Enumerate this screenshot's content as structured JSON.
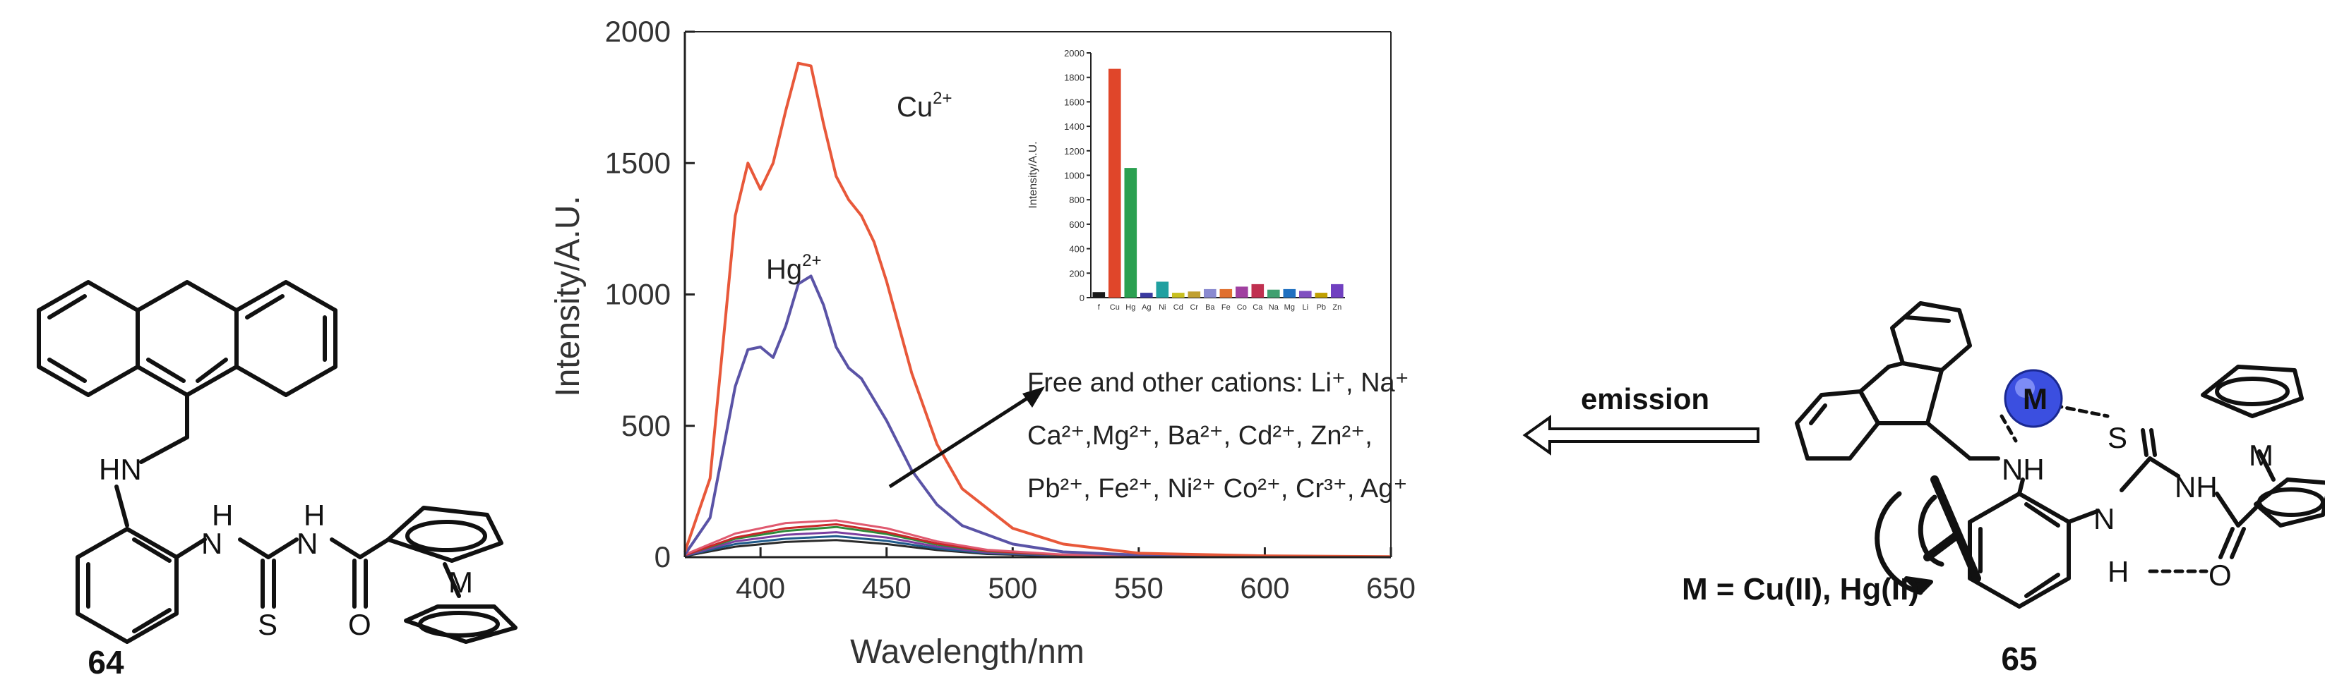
{
  "compounds": {
    "left_label": "64",
    "right_label": "65",
    "metal_condition": "M = Cu(II), Hg(II)",
    "arrow_label": "emission",
    "atoms": {
      "HN": "HN",
      "H": "H",
      "N": "N",
      "S": "S",
      "O": "O",
      "M": "M",
      "NH": "NH",
      "NH_amide": "NH",
      "H_hbond": "H"
    }
  },
  "colors": {
    "cu_line": "#e8583a",
    "hg_line": "#5a53a6",
    "axis": "#222222",
    "metal_sphere": "#3b4fe0"
  },
  "chart_data": [
    {
      "type": "line",
      "title": "",
      "xlabel": "Wavelength/nm",
      "ylabel": "Intensity/A.U.",
      "xlim": [
        370,
        650
      ],
      "ylim": [
        0,
        2000
      ],
      "xticks": [
        400,
        450,
        500,
        550,
        600,
        650
      ],
      "yticks": [
        0,
        500,
        1000,
        1500,
        2000
      ],
      "annotations": {
        "cu_label": "Cu",
        "cu_sup": "2+",
        "hg_label": "Hg",
        "hg_sup": "2+",
        "others_line1": "Free and other cations: Li⁺,  Na⁺",
        "others_line2": "Ca²⁺,Mg²⁺, Ba²⁺, Cd²⁺, Zn²⁺,",
        "others_line3": "Pb²⁺, Fe²⁺, Ni²⁺ Co²⁺, Cr³⁺, Ag⁺"
      },
      "series": [
        {
          "name": "Cu2+",
          "color": "#e8583a",
          "x": [
            370,
            380,
            385,
            390,
            395,
            400,
            405,
            410,
            415,
            420,
            425,
            430,
            435,
            440,
            445,
            450,
            460,
            470,
            480,
            500,
            520,
            550,
            600,
            650
          ],
          "y": [
            20,
            300,
            800,
            1300,
            1500,
            1400,
            1500,
            1700,
            1880,
            1870,
            1650,
            1450,
            1360,
            1300,
            1200,
            1050,
            700,
            430,
            260,
            110,
            50,
            15,
            5,
            2
          ]
        },
        {
          "name": "Hg2+",
          "color": "#5a53a6",
          "x": [
            370,
            380,
            385,
            390,
            395,
            400,
            405,
            410,
            415,
            420,
            425,
            430,
            435,
            440,
            445,
            450,
            460,
            470,
            480,
            500,
            520,
            550,
            600,
            650
          ],
          "y": [
            10,
            150,
            400,
            650,
            790,
            800,
            760,
            880,
            1040,
            1070,
            960,
            800,
            720,
            680,
            600,
            520,
            330,
            200,
            120,
            50,
            20,
            8,
            3,
            1
          ]
        },
        {
          "name": "Free",
          "color": "#e05a70",
          "x": [
            370,
            390,
            410,
            430,
            450,
            470,
            490,
            520,
            560,
            650
          ],
          "y": [
            10,
            90,
            130,
            140,
            110,
            60,
            28,
            10,
            3,
            1
          ]
        },
        {
          "name": "Li+",
          "color": "#c8282a",
          "x": [
            370,
            390,
            410,
            430,
            450,
            470,
            490,
            520,
            560,
            650
          ],
          "y": [
            8,
            75,
            110,
            125,
            95,
            52,
            24,
            9,
            3,
            1
          ]
        },
        {
          "name": "Na+",
          "color": "#2d8a3a",
          "x": [
            370,
            390,
            410,
            430,
            450,
            470,
            490,
            520,
            560,
            650
          ],
          "y": [
            8,
            70,
            100,
            115,
            88,
            48,
            22,
            8,
            3,
            1
          ]
        },
        {
          "name": "Ca2+",
          "color": "#7b3fa0",
          "x": [
            370,
            390,
            410,
            430,
            450,
            470,
            490,
            520,
            560,
            650
          ],
          "y": [
            6,
            60,
            85,
            95,
            75,
            40,
            18,
            7,
            2,
            1
          ]
        },
        {
          "name": "Cd2+",
          "color": "#1f5a8a",
          "x": [
            370,
            390,
            410,
            430,
            450,
            470,
            490,
            520,
            560,
            650
          ],
          "y": [
            5,
            50,
            70,
            80,
            62,
            33,
            15,
            6,
            2,
            1
          ]
        },
        {
          "name": "Pb2+",
          "color": "#2a2a2a",
          "x": [
            370,
            390,
            410,
            430,
            450,
            470,
            490,
            520,
            560,
            650
          ],
          "y": [
            4,
            40,
            58,
            65,
            50,
            27,
            12,
            5,
            2,
            1
          ]
        }
      ]
    },
    {
      "type": "bar",
      "title": "",
      "xlabel": "",
      "ylabel": "Intensity/A.U.",
      "ylim": [
        0,
        2000
      ],
      "yticks": [
        0,
        200,
        400,
        600,
        800,
        1000,
        1200,
        1400,
        1600,
        1800,
        2000
      ],
      "categories": [
        "f",
        "Cu",
        "Hg",
        "Ag",
        "Ni",
        "Cd",
        "Cr",
        "Ba",
        "Fe",
        "Co",
        "Ca",
        "Na",
        "Mg",
        "Li",
        "Pb",
        "Zn"
      ],
      "values": [
        45,
        1870,
        1060,
        40,
        130,
        40,
        50,
        70,
        70,
        90,
        110,
        65,
        70,
        55,
        40,
        110
      ],
      "colors": [
        "#1a1a1a",
        "#e0462a",
        "#2aa050",
        "#3a3aa0",
        "#20a0a0",
        "#c8c020",
        "#c0a030",
        "#8a8ad0",
        "#e07030",
        "#a040a0",
        "#c03050",
        "#40a070",
        "#2070c0",
        "#8050c0",
        "#c0a000",
        "#7040c0"
      ]
    }
  ]
}
